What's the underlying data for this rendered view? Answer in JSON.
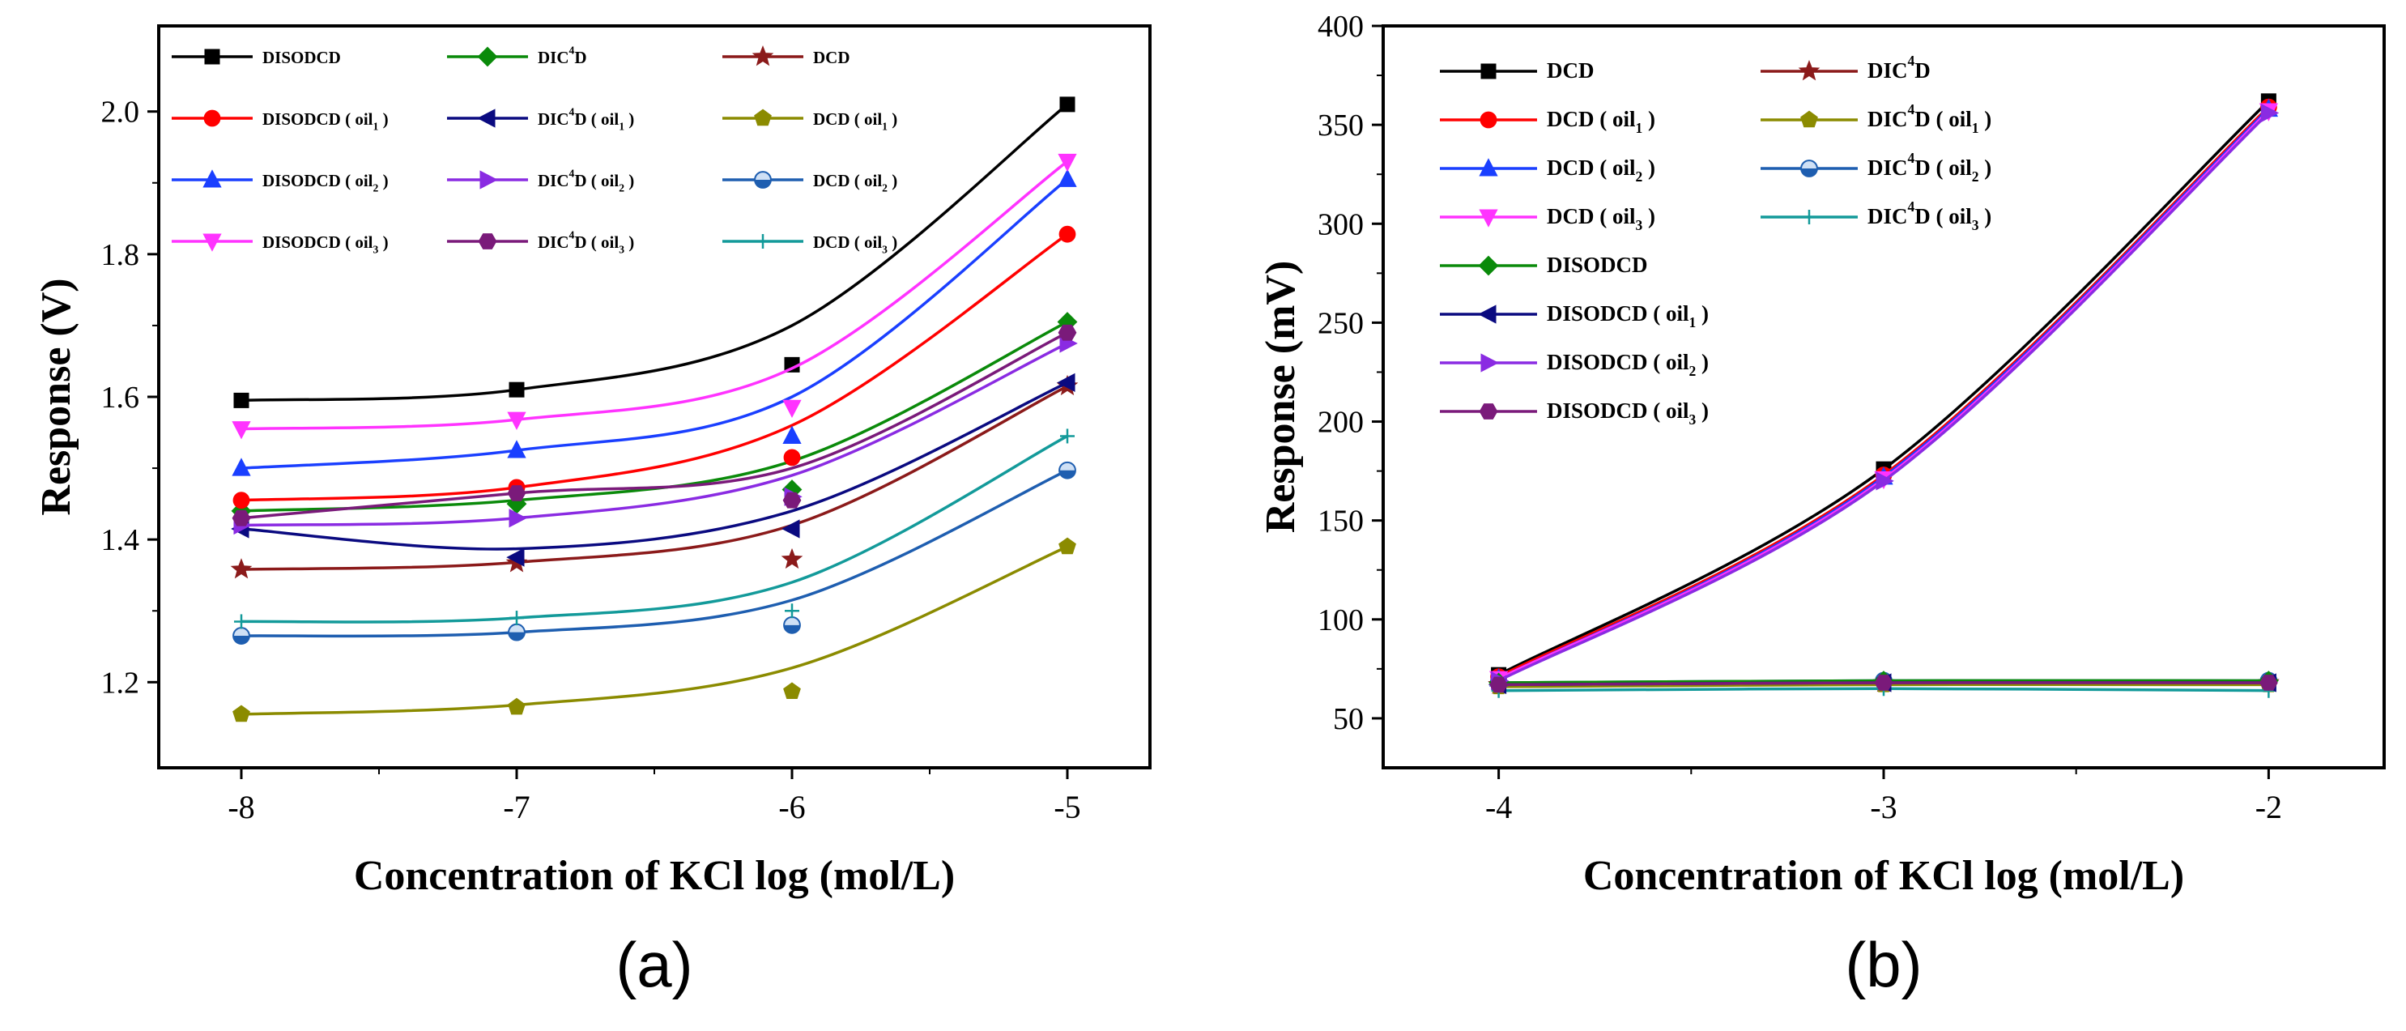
{
  "chart_data": [
    {
      "type": "line",
      "panel_label": "(a)",
      "xlabel": "Concentration of KCl log (mol/L)",
      "ylabel": "Response (V)",
      "xlim": [
        -8.3,
        -4.7
      ],
      "ylim": [
        1.08,
        2.12
      ],
      "xticks": [
        -8,
        -7,
        -6,
        -5
      ],
      "yticks": [
        1.2,
        1.4,
        1.6,
        1.8,
        2.0
      ],
      "xtick_labels": [
        "-8",
        "-7",
        "-6",
        "-5"
      ],
      "ytick_labels": [
        "1.2",
        "1.4",
        "1.6",
        "1.8",
        "2.0"
      ],
      "x": [
        -8,
        -7,
        -6,
        -5
      ],
      "legend_columns": 3,
      "series": [
        {
          "base": "DISODCD",
          "sub": "",
          "color": "#000000",
          "marker": "square",
          "values": [
            1.595,
            1.61,
            1.645,
            2.01
          ],
          "fit": [
            1.595,
            1.61,
            1.7,
            2.01
          ]
        },
        {
          "base": "DIC",
          "sup": "4",
          "tail": "D",
          "sub": "",
          "color": "#0a8a0a",
          "marker": "diamond",
          "values": [
            1.44,
            1.45,
            1.47,
            1.705
          ],
          "fit": [
            1.44,
            1.455,
            1.51,
            1.705
          ]
        },
        {
          "base": "DCD",
          "sub": "",
          "color": "#8b1a1a",
          "marker": "star",
          "values": [
            1.358,
            1.367,
            1.372,
            1.615
          ],
          "fit": [
            1.358,
            1.368,
            1.42,
            1.615
          ]
        },
        {
          "base": "DISODCD",
          "sub": "1",
          "color": "#ff0000",
          "marker": "circle",
          "values": [
            1.455,
            1.473,
            1.515,
            1.828
          ],
          "fit": [
            1.455,
            1.473,
            1.56,
            1.828
          ]
        },
        {
          "base": "DIC",
          "sup": "4",
          "tail": "D",
          "sub": "1",
          "color": "#0a0a80",
          "marker": "tri-left",
          "values": [
            1.415,
            1.375,
            1.415,
            1.62
          ],
          "fit": [
            1.415,
            1.387,
            1.44,
            1.62
          ]
        },
        {
          "base": "DCD",
          "sub": "1",
          "color": "#8b8b00",
          "marker": "pentagon",
          "values": [
            1.155,
            1.165,
            1.187,
            1.39
          ],
          "fit": [
            1.155,
            1.168,
            1.22,
            1.39
          ]
        },
        {
          "base": "DISODCD",
          "sub": "2",
          "color": "#1a3fff",
          "marker": "tri-up",
          "values": [
            1.5,
            1.525,
            1.545,
            1.905
          ],
          "fit": [
            1.5,
            1.525,
            1.6,
            1.905
          ]
        },
        {
          "base": "DIC",
          "sup": "4",
          "tail": "D",
          "sub": "2",
          "color": "#8a2be2",
          "marker": "tri-right",
          "values": [
            1.42,
            1.43,
            1.46,
            1.675
          ],
          "fit": [
            1.42,
            1.43,
            1.49,
            1.675
          ]
        },
        {
          "base": "DCD",
          "sub": "2",
          "color": "#1e5eb0",
          "marker": "circle-half",
          "values": [
            1.265,
            1.27,
            1.28,
            1.497
          ],
          "fit": [
            1.265,
            1.27,
            1.315,
            1.497
          ]
        },
        {
          "base": "DISODCD",
          "sub": "3",
          "color": "#ff33ff",
          "marker": "tri-down",
          "values": [
            1.555,
            1.568,
            1.585,
            1.93
          ],
          "fit": [
            1.555,
            1.568,
            1.64,
            1.93
          ]
        },
        {
          "base": "DIC",
          "sup": "4",
          "tail": "D",
          "sub": "3",
          "color": "#7a1a7a",
          "marker": "hexagon",
          "values": [
            1.43,
            1.465,
            1.455,
            1.69
          ],
          "fit": [
            1.43,
            1.465,
            1.5,
            1.69
          ]
        },
        {
          "base": "DCD",
          "sub": "3",
          "color": "#139a9a",
          "marker": "plus",
          "values": [
            1.285,
            1.29,
            1.3,
            1.545
          ],
          "fit": [
            1.285,
            1.29,
            1.34,
            1.545
          ]
        }
      ]
    },
    {
      "type": "line",
      "panel_label": "(b)",
      "xlabel": "Concentration of KCl log (mol/L)",
      "ylabel": "Response (mV)",
      "xlim": [
        -4.3,
        -1.7
      ],
      "ylim": [
        25,
        400
      ],
      "xticks": [
        -4,
        -3,
        -2
      ],
      "yticks": [
        50,
        100,
        150,
        200,
        250,
        300,
        350,
        400
      ],
      "xtick_labels": [
        "-4",
        "-3",
        "-2"
      ],
      "ytick_labels": [
        "50",
        "100",
        "150",
        "200",
        "250",
        "300",
        "350",
        "400"
      ],
      "x": [
        -4,
        -3,
        -2
      ],
      "legend_columns": 2,
      "series": [
        {
          "base": "DCD",
          "sub": "",
          "color": "#000000",
          "marker": "square",
          "values": [
            72,
            176,
            362
          ]
        },
        {
          "base": "DIC",
          "sup": "4",
          "tail": "D",
          "sub": "",
          "color": "#8b1a1a",
          "marker": "star",
          "values": [
            67,
            68,
            68
          ]
        },
        {
          "base": "DCD",
          "sub": "1",
          "color": "#ff0000",
          "marker": "circle",
          "values": [
            71,
            173,
            359
          ]
        },
        {
          "base": "DIC",
          "sup": "4",
          "tail": "D",
          "sub": "1",
          "color": "#8b8b00",
          "marker": "pentagon",
          "values": [
            66,
            67,
            67
          ]
        },
        {
          "base": "DCD",
          "sub": "2",
          "color": "#1a3fff",
          "marker": "tri-up",
          "values": [
            70,
            172,
            358
          ]
        },
        {
          "base": "DIC",
          "sup": "4",
          "tail": "D",
          "sub": "2",
          "color": "#1e5eb0",
          "marker": "circle-half",
          "values": [
            68,
            69,
            69
          ]
        },
        {
          "base": "DCD",
          "sub": "3",
          "color": "#ff33ff",
          "marker": "tri-down",
          "values": [
            70,
            171,
            357
          ]
        },
        {
          "base": "DIC",
          "sup": "4",
          "tail": "D",
          "sub": "3",
          "color": "#139a9a",
          "marker": "plus",
          "values": [
            64,
            65,
            64
          ]
        },
        {
          "base": "DISODCD",
          "sub": "",
          "color": "#0a8a0a",
          "marker": "diamond",
          "values": [
            68,
            69,
            69
          ]
        },
        {
          "base": "DISODCD",
          "sub": "1",
          "color": "#0a0a80",
          "marker": "tri-left",
          "values": [
            67,
            68,
            68
          ]
        },
        {
          "base": "DISODCD",
          "sub": "2",
          "color": "#8a2be2",
          "marker": "tri-right",
          "values": [
            69,
            170,
            356
          ]
        },
        {
          "base": "DISODCD",
          "sub": "3",
          "color": "#7a1a7a",
          "marker": "hexagon",
          "values": [
            67,
            68,
            68
          ]
        }
      ]
    }
  ]
}
